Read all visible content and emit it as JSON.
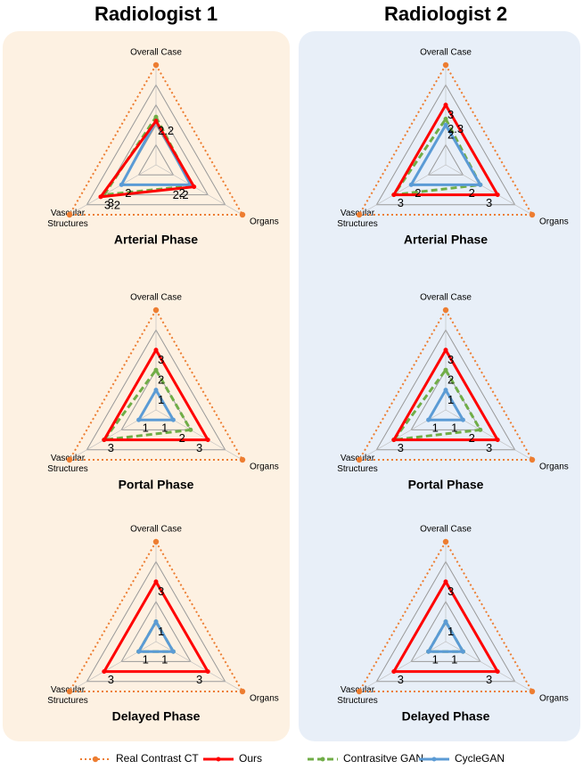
{
  "columns": [
    "Radiologist 1",
    "Radiologist 2"
  ],
  "chart_data": [
    {
      "type": "radar",
      "title": "Arterial Phase",
      "axes": [
        "Overall Case",
        "Organs",
        "Vascular Structures"
      ],
      "rlim": [
        0,
        5
      ],
      "rticks": [
        1,
        2,
        3,
        4
      ],
      "series": [
        {
          "name": "Real Contrast CT",
          "color": "#ed7d31",
          "values": [
            5,
            5,
            5
          ],
          "value_labels": [
            null,
            null,
            null
          ]
        },
        {
          "name": "Ours",
          "color": "#ff0000",
          "values": [
            2.2,
            2.2,
            3.2
          ],
          "value_labels": [
            "2.2",
            "2.2",
            "3.2"
          ]
        },
        {
          "name": "Contrasitve GAN",
          "color": "#70ad47",
          "values": [
            2.4,
            2.1,
            3
          ],
          "value_labels": [
            null,
            null,
            "3"
          ]
        },
        {
          "name": "CycleGAN",
          "color": "#5b9bd5",
          "values": [
            2.2,
            2,
            2
          ],
          "value_labels": [
            null,
            "2",
            "2"
          ]
        }
      ]
    },
    {
      "type": "radar",
      "title": "Arterial Phase",
      "axes": [
        "Overall Case",
        "Organs",
        "Vascular Structures"
      ],
      "rlim": [
        0,
        5
      ],
      "rticks": [
        1,
        2,
        3,
        4
      ],
      "series": [
        {
          "name": "Real Contrast CT",
          "color": "#ed7d31",
          "values": [
            5,
            5,
            5
          ],
          "value_labels": [
            null,
            null,
            null
          ]
        },
        {
          "name": "Ours",
          "color": "#ff0000",
          "values": [
            3,
            3,
            3
          ],
          "value_labels": [
            "3",
            "3",
            null
          ]
        },
        {
          "name": "Contrasitve GAN",
          "color": "#70ad47",
          "values": [
            2.3,
            2,
            3
          ],
          "value_labels": [
            "2.3",
            null,
            "3"
          ]
        },
        {
          "name": "CycleGAN",
          "color": "#5b9bd5",
          "values": [
            2,
            2,
            2
          ],
          "value_labels": [
            "2",
            "2",
            "2"
          ]
        }
      ]
    },
    {
      "type": "radar",
      "title": "Portal Phase",
      "axes": [
        "Overall Case",
        "Organs",
        "Vascular Structures"
      ],
      "rlim": [
        0,
        5
      ],
      "rticks": [
        1,
        2,
        3,
        4
      ],
      "series": [
        {
          "name": "Real Contrast CT",
          "color": "#ed7d31",
          "values": [
            5,
            5,
            5
          ],
          "value_labels": [
            null,
            null,
            null
          ]
        },
        {
          "name": "Ours",
          "color": "#ff0000",
          "values": [
            3,
            3,
            3
          ],
          "value_labels": [
            "3",
            "3",
            "3"
          ]
        },
        {
          "name": "Contrasitve GAN",
          "color": "#70ad47",
          "values": [
            2,
            2,
            3
          ],
          "value_labels": [
            "2",
            "2",
            null
          ]
        },
        {
          "name": "CycleGAN",
          "color": "#5b9bd5",
          "values": [
            1,
            1,
            1
          ],
          "value_labels": [
            "1",
            "1",
            "1"
          ]
        }
      ]
    },
    {
      "type": "radar",
      "title": "Portal Phase",
      "axes": [
        "Overall Case",
        "Organs",
        "Vascular Structures"
      ],
      "rlim": [
        0,
        5
      ],
      "rticks": [
        1,
        2,
        3,
        4
      ],
      "series": [
        {
          "name": "Real Contrast CT",
          "color": "#ed7d31",
          "values": [
            5,
            5,
            5
          ],
          "value_labels": [
            null,
            null,
            null
          ]
        },
        {
          "name": "Ours",
          "color": "#ff0000",
          "values": [
            3,
            3,
            3
          ],
          "value_labels": [
            "3",
            "3",
            "3"
          ]
        },
        {
          "name": "Contrasitve GAN",
          "color": "#70ad47",
          "values": [
            2,
            2,
            3
          ],
          "value_labels": [
            "2",
            "2",
            null
          ]
        },
        {
          "name": "CycleGAN",
          "color": "#5b9bd5",
          "values": [
            1,
            1,
            1
          ],
          "value_labels": [
            "1",
            "1",
            "1"
          ]
        }
      ]
    },
    {
      "type": "radar",
      "title": "Delayed Phase",
      "axes": [
        "Overall Case",
        "Organs",
        "Vascular Structures"
      ],
      "rlim": [
        0,
        5
      ],
      "rticks": [
        1,
        2,
        3,
        4
      ],
      "series": [
        {
          "name": "Real Contrast CT",
          "color": "#ed7d31",
          "values": [
            5,
            5,
            5
          ],
          "value_labels": [
            null,
            null,
            null
          ]
        },
        {
          "name": "Ours",
          "color": "#ff0000",
          "values": [
            3,
            3,
            3
          ],
          "value_labels": [
            "3",
            "3",
            "3"
          ]
        },
        {
          "name": "Contrasitve GAN",
          "color": "#70ad47",
          "values": [
            1,
            1,
            1
          ],
          "value_labels": [
            null,
            null,
            null
          ]
        },
        {
          "name": "CycleGAN",
          "color": "#5b9bd5",
          "values": [
            1,
            1,
            1
          ],
          "value_labels": [
            "1",
            "1",
            "1"
          ]
        }
      ]
    },
    {
      "type": "radar",
      "title": "Delayed Phase",
      "axes": [
        "Overall Case",
        "Organs",
        "Vascular Structures"
      ],
      "rlim": [
        0,
        5
      ],
      "rticks": [
        1,
        2,
        3,
        4
      ],
      "series": [
        {
          "name": "Real Contrast CT",
          "color": "#ed7d31",
          "values": [
            5,
            5,
            5
          ],
          "value_labels": [
            null,
            null,
            null
          ]
        },
        {
          "name": "Ours",
          "color": "#ff0000",
          "values": [
            3,
            3,
            3
          ],
          "value_labels": [
            "3",
            "3",
            "3"
          ]
        },
        {
          "name": "Contrasitve GAN",
          "color": "#70ad47",
          "values": [
            1,
            1,
            1
          ],
          "value_labels": [
            null,
            null,
            null
          ]
        },
        {
          "name": "CycleGAN",
          "color": "#5b9bd5",
          "values": [
            1,
            1,
            1
          ],
          "value_labels": [
            "1",
            "1",
            "1"
          ]
        }
      ]
    }
  ]
}
